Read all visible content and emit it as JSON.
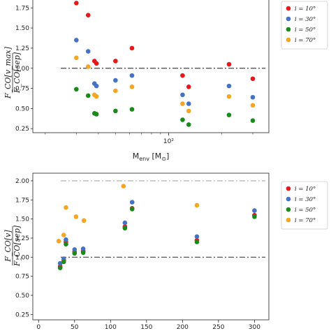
{
  "chart_data": [
    {
      "type": "scatter",
      "title": "",
      "xlabel": "M_env [M_sun]",
      "xlabel_main": "M",
      "xlabel_sub": "env",
      "xlabel_unit_open": " [M",
      "xlabel_unit_sub": "⊙",
      "xlabel_unit_close": "]",
      "ylabel_numerator": "F_CO[v_max]",
      "ylabel_denominator": "F_CO[sep]",
      "x_scale": "log",
      "xlim": [
        17,
        370
      ],
      "ylim": [
        0.2,
        1.9
      ],
      "x_tick_labels": [
        {
          "value": 100,
          "label": "10²"
        }
      ],
      "y_ticks": [
        0.25,
        0.5,
        0.75,
        1.0,
        1.25,
        1.5,
        1.75
      ],
      "y_tick_labels": [
        "0.25",
        "0.50",
        "0.75",
        "1.00",
        "1.25",
        "1.50",
        "1.75"
      ],
      "hline": 1.0,
      "hline_color": "#444444",
      "legend_position": "top-right",
      "series": [
        {
          "name": "i = 10°",
          "color": "#e41a1c",
          "x": [
            30,
            35,
            38,
            39,
            50,
            62,
            120,
            130,
            220,
            300
          ],
          "y": [
            1.81,
            1.66,
            1.09,
            1.06,
            1.09,
            1.25,
            0.91,
            0.77,
            1.05,
            0.87
          ]
        },
        {
          "name": "i = 30°",
          "color": "#4472c4",
          "x": [
            30,
            35,
            38,
            39,
            50,
            62,
            120,
            130,
            220,
            300
          ],
          "y": [
            1.35,
            1.21,
            0.81,
            0.78,
            0.85,
            0.91,
            0.67,
            0.56,
            0.78,
            0.64
          ]
        },
        {
          "name": "i = 50°",
          "color": "#1a8a1a",
          "x": [
            30,
            35,
            38,
            39,
            50,
            62,
            120,
            130,
            220,
            300
          ],
          "y": [
            0.74,
            0.66,
            0.44,
            0.43,
            0.47,
            0.49,
            0.36,
            0.3,
            0.42,
            0.35
          ]
        },
        {
          "name": "i = 70°",
          "color": "#f5a623",
          "x": [
            30,
            35,
            38,
            39,
            50,
            62,
            120,
            130,
            220,
            300
          ],
          "y": [
            1.13,
            1.02,
            0.67,
            0.65,
            0.72,
            0.77,
            0.56,
            0.47,
            0.65,
            0.54
          ]
        }
      ]
    },
    {
      "type": "scatter",
      "title": "",
      "ylabel_numerator": "F_CO[v]",
      "ylabel_denominator": "F_CO[sep]",
      "x_scale": "linear",
      "xlim": [
        -8,
        320
      ],
      "ylim": [
        0.18,
        2.1
      ],
      "x_ticks": [
        0,
        50,
        100,
        150,
        200,
        250,
        300
      ],
      "x_tick_labels": [
        "0",
        "50",
        "100",
        "150",
        "200",
        "250",
        "300"
      ],
      "y_ticks": [
        0.25,
        0.5,
        0.75,
        1.0,
        1.25,
        1.5,
        1.75,
        2.0
      ],
      "y_tick_labels": [
        "0.25",
        "0.50",
        "0.75",
        "1.00",
        "1.25",
        "1.50",
        "1.75",
        "2.00"
      ],
      "hlines": [
        {
          "value": 1.0,
          "color": "#444444"
        },
        {
          "value": 2.0,
          "color": "#aaaaaa"
        }
      ],
      "legend_position": "top-right",
      "series": [
        {
          "name": "i = 10°",
          "color": "#e41a1c",
          "x": [
            30,
            35,
            38,
            50,
            62,
            120,
            130,
            220,
            300
          ],
          "y": [
            0.88,
            0.96,
            1.2,
            1.07,
            1.08,
            1.4,
            1.64,
            1.22,
            1.55
          ]
        },
        {
          "name": "i = 30°",
          "color": "#4472c4",
          "x": [
            30,
            35,
            38,
            50,
            62,
            120,
            130,
            220,
            300
          ],
          "y": [
            0.92,
            0.98,
            1.23,
            1.1,
            1.11,
            1.45,
            1.72,
            1.27,
            1.61
          ]
        },
        {
          "name": "i = 50°",
          "color": "#1a8a1a",
          "x": [
            30,
            35,
            38,
            50,
            62,
            120,
            130,
            220,
            300
          ],
          "y": [
            0.86,
            0.94,
            1.17,
            1.05,
            1.06,
            1.38,
            1.63,
            1.2,
            1.53
          ]
        },
        {
          "name": "i = 70°",
          "color": "#f5a623",
          "x": [
            28,
            35,
            38,
            52,
            63,
            118,
            220
          ],
          "y": [
            1.21,
            1.29,
            1.65,
            1.53,
            1.48,
            1.93,
            1.68
          ]
        }
      ]
    }
  ]
}
